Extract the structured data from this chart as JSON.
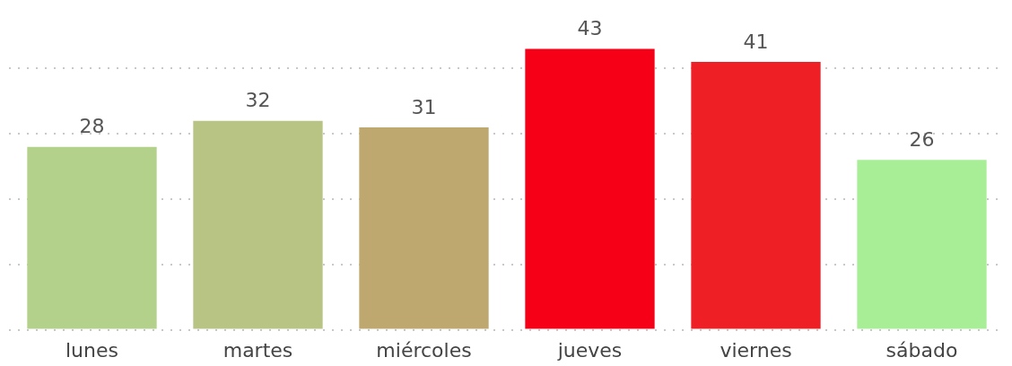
{
  "chart_data": {
    "type": "bar",
    "categories": [
      "lunes",
      "martes",
      "miércoles",
      "jueves",
      "viernes",
      "sábado"
    ],
    "values": [
      28,
      32,
      31,
      43,
      41,
      26
    ],
    "colors": [
      "#b3d18a",
      "#b8c484",
      "#bfa870",
      "#f50016",
      "#ef2025",
      "#a8ee96"
    ],
    "yticks": [
      {
        "value": 0,
        "label": null
      },
      {
        "value": 10,
        "label": null
      },
      {
        "value": 20,
        "label": null
      },
      {
        "value": 30,
        "label": null
      },
      {
        "value": 40,
        "label": null
      }
    ],
    "grid": "y",
    "tick_labels": "x",
    "data_labels": true
  }
}
